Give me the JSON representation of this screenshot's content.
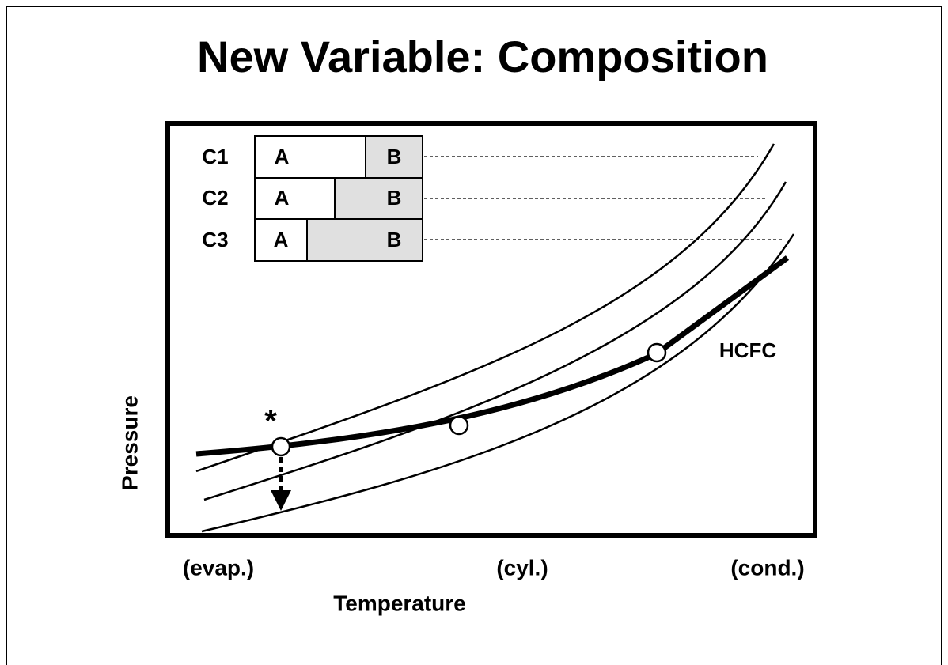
{
  "title": "New Variable: Composition",
  "compositions": [
    {
      "name": "C1",
      "a": "A",
      "b": "B"
    },
    {
      "name": "C2",
      "a": "A",
      "b": "B"
    },
    {
      "name": "C3",
      "a": "A",
      "b": "B"
    }
  ],
  "marker": "*",
  "curve_label": "HCFC",
  "y_axis_label": "Pressure",
  "x_axis_label": "Temperature",
  "x_labels": [
    "(evap.)",
    "(cyl.)",
    "(cond.)"
  ]
}
